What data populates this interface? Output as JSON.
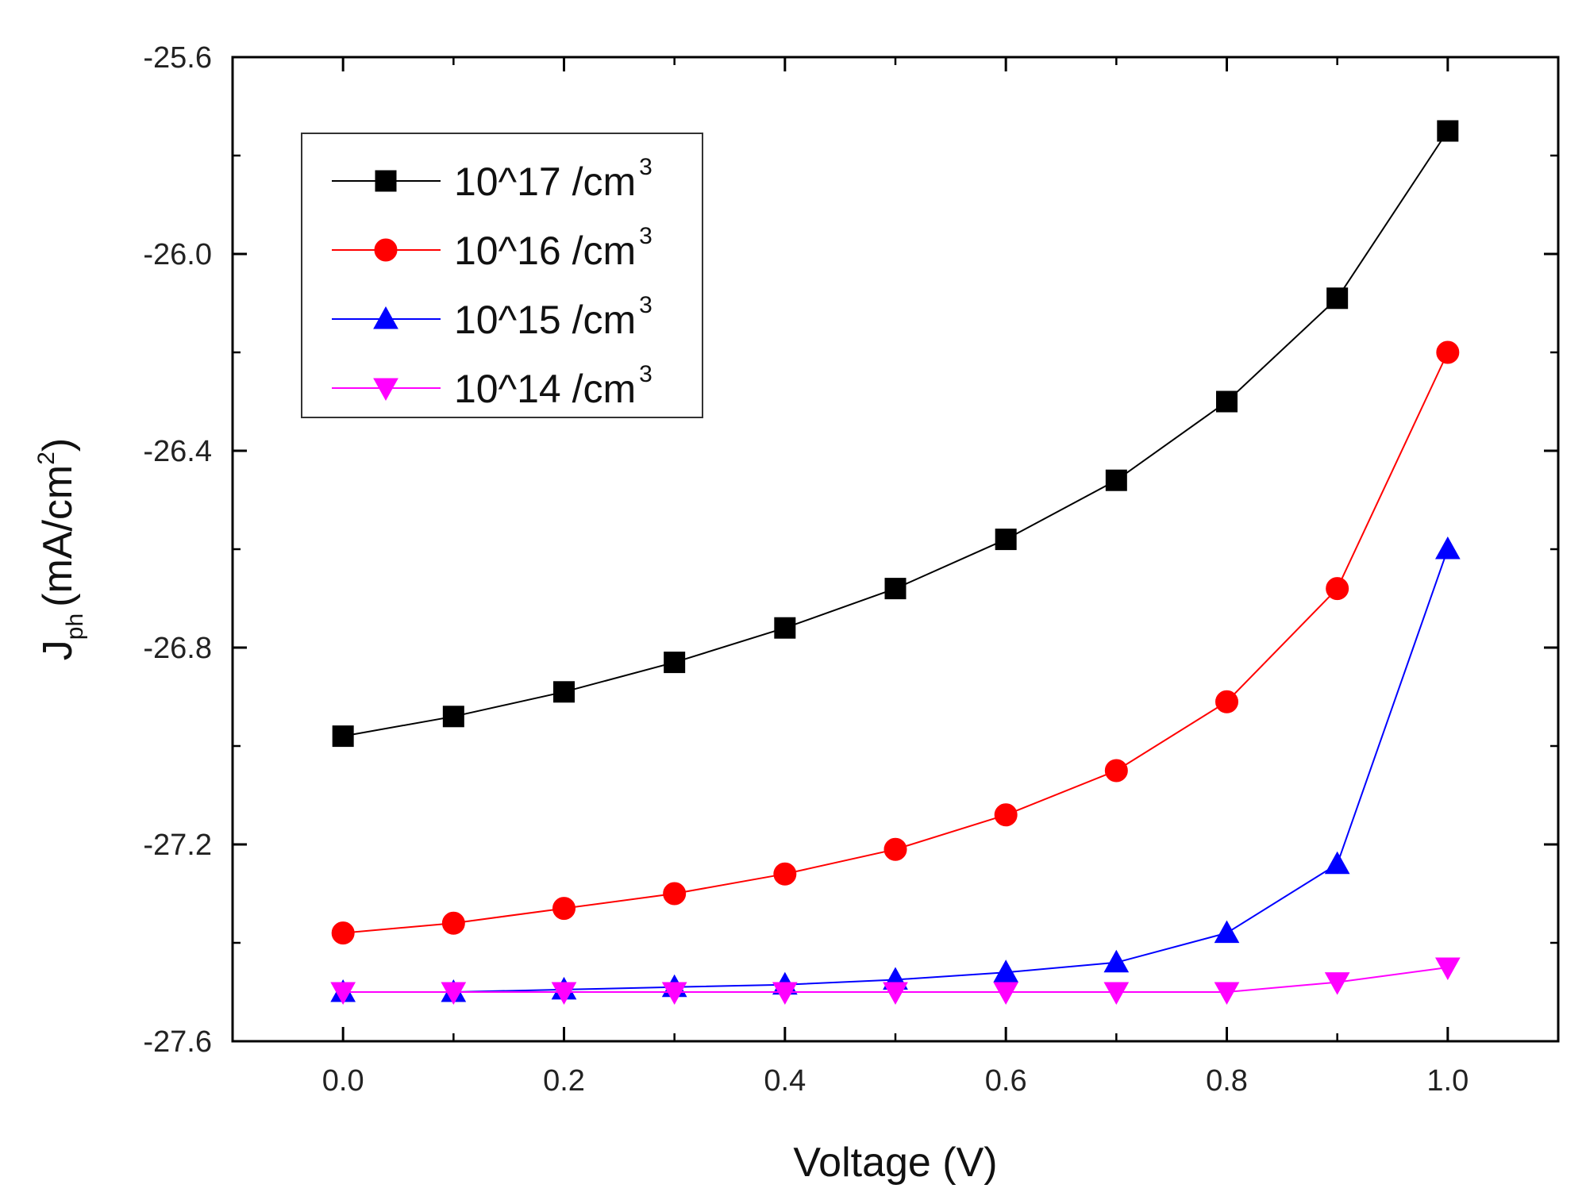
{
  "chart_data": {
    "type": "line",
    "title": "",
    "xlabel": "Voltage (V)",
    "ylabel": {
      "main": "J",
      "subscript": "ph",
      "unit_prefix": "(mA/cm",
      "unit_sup": "2",
      "unit_suffix": ")"
    },
    "xlim": [
      -0.1,
      1.1
    ],
    "ylim": [
      -27.6,
      -25.6
    ],
    "x_ticks": [
      0.0,
      0.2,
      0.4,
      0.6,
      0.8,
      1.0
    ],
    "x_tick_labels": [
      "0.0",
      "0.2",
      "0.4",
      "0.6",
      "0.8",
      "1.0"
    ],
    "y_ticks": [
      -27.6,
      -27.2,
      -26.8,
      -26.4,
      -26.0,
      -25.6
    ],
    "y_tick_labels": [
      "-27.6",
      "-27.2",
      "-26.8",
      "-26.4",
      "-26.0",
      "-25.6"
    ],
    "grid": false,
    "legend_position": "top-left",
    "x": [
      0.0,
      0.1,
      0.2,
      0.3,
      0.4,
      0.5,
      0.6,
      0.7,
      0.8,
      0.9,
      1.0
    ],
    "series": [
      {
        "name": "10^17 /cm",
        "name_sup": "3",
        "color": "#000000",
        "marker": "square",
        "values": [
          -26.98,
          -26.94,
          -26.89,
          -26.83,
          -26.76,
          -26.68,
          -26.58,
          -26.46,
          -26.3,
          -26.09,
          -25.75
        ]
      },
      {
        "name": "10^16 /cm",
        "name_sup": "3",
        "color": "#ff0000",
        "marker": "circle",
        "values": [
          -27.38,
          -27.36,
          -27.33,
          -27.3,
          -27.26,
          -27.21,
          -27.14,
          -27.05,
          -26.91,
          -26.68,
          -26.2
        ]
      },
      {
        "name": "10^15 /cm",
        "name_sup": "3",
        "color": "#0000ff",
        "marker": "triangle-up",
        "values": [
          -27.5,
          -27.5,
          -27.495,
          -27.49,
          -27.485,
          -27.475,
          -27.46,
          -27.44,
          -27.38,
          -27.24,
          -26.6
        ]
      },
      {
        "name": "10^14 /cm",
        "name_sup": "3",
        "color": "#ff00ff",
        "marker": "triangle-down",
        "values": [
          -27.5,
          -27.5,
          -27.5,
          -27.5,
          -27.5,
          -27.5,
          -27.5,
          -27.5,
          -27.5,
          -27.48,
          -27.45
        ]
      }
    ]
  }
}
